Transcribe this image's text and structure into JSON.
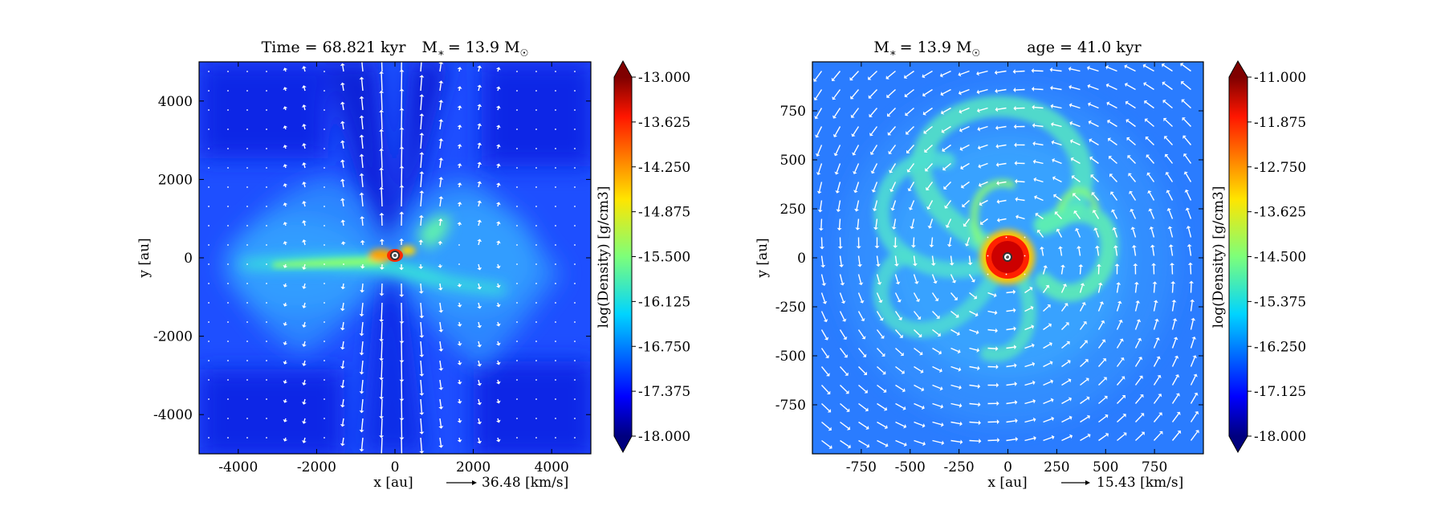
{
  "chart_data": [
    {
      "type": "heatmap",
      "title": "Time = 68.821 kyr    M∗ = 13.9 M☉",
      "title_parts": {
        "left": "Time = 68.821 kyr",
        "mstar": "M",
        "mstar_sub": "∗",
        "mstar_eq": "= 13.9 M",
        "sun": "☉"
      },
      "xlabel": "x [au]",
      "ylabel": "y [au]",
      "xlim": [
        -5000,
        5000
      ],
      "ylim": [
        -5000,
        5000
      ],
      "xticks": [
        -4000,
        -2000,
        0,
        2000,
        4000
      ],
      "xtick_labels": [
        "-4000",
        "-2000",
        "0",
        "2000",
        "4000"
      ],
      "yticks": [
        4000,
        2000,
        0,
        -2000,
        -4000
      ],
      "ytick_labels": [
        "4000",
        "2000",
        "0",
        "-2000",
        "-4000"
      ],
      "colorbar": {
        "label": "log(Density) [g/cm3]",
        "range": [
          -18.0,
          -13.0
        ],
        "ticks": [
          "-13.000",
          "-13.625",
          "-14.250",
          "-14.875",
          "-15.500",
          "-16.125",
          "-16.750",
          "-17.375",
          "-18.000"
        ]
      },
      "velocity_key": {
        "label": "36.48 [km/s]",
        "value": 36.48,
        "unit": "km/s"
      },
      "structure": "edge-on view: dense disk along y = 0 plus bipolar outflow cavity along x = 0",
      "colormap": "jet"
    },
    {
      "type": "heatmap",
      "title": "M∗ = 13.9 M☉          age = 41.0 kyr",
      "title_parts": {
        "mstar": "M",
        "mstar_sub": "∗",
        "mstar_eq": "= 13.9 M",
        "sun": "☉",
        "right": "age = 41.0 kyr"
      },
      "xlabel": "x [au]",
      "ylabel": "y [au]",
      "xlim": [
        -1000,
        1000
      ],
      "ylim": [
        -1000,
        1000
      ],
      "xticks": [
        -750,
        -500,
        -250,
        0,
        250,
        500,
        750
      ],
      "xtick_labels": [
        "-750",
        "-500",
        "-250",
        "0",
        "250",
        "500",
        "750"
      ],
      "yticks": [
        750,
        500,
        250,
        0,
        -250,
        -500,
        -750
      ],
      "ytick_labels": [
        "750",
        "500",
        "250",
        "0",
        "-250",
        "-500",
        "-750"
      ],
      "colorbar": {
        "label": "log(Density) [g/cm3]",
        "range": [
          -18.0,
          -11.0
        ],
        "ticks": [
          "-11.000",
          "-11.875",
          "-12.750",
          "-13.625",
          "-14.500",
          "-15.375",
          "-16.250",
          "-17.125",
          "-18.000"
        ]
      },
      "velocity_key": {
        "label": "15.43 [km/s]",
        "value": 15.43,
        "unit": "km/s"
      },
      "structure": "face-on view: dense rotating core with spiral arms and fragments",
      "colormap": "jet"
    }
  ]
}
